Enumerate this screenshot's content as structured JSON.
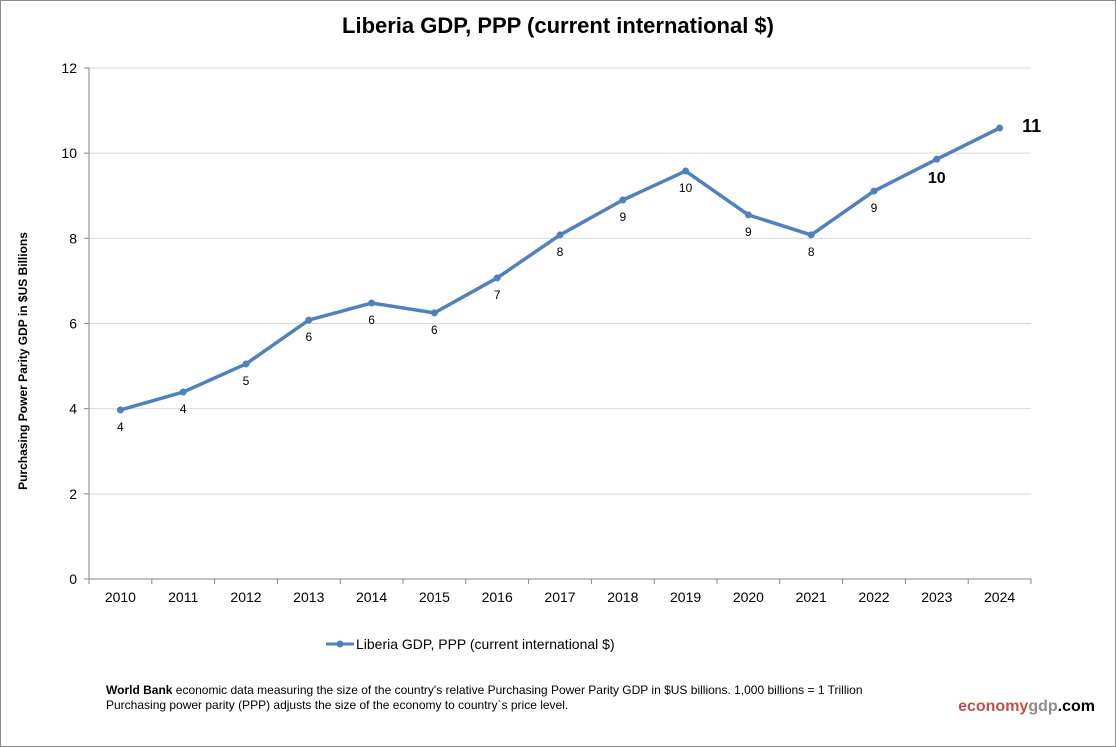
{
  "chart_data": {
    "type": "line",
    "title": "Liberia GDP, PPP (current international $)",
    "ylabel": "Purchasing Power Parity GDP in $US Billions",
    "xlabel": "",
    "ylim": [
      0,
      12
    ],
    "yticks": [
      "0",
      "2",
      "4",
      "6",
      "8",
      "10",
      "12"
    ],
    "grid": true,
    "legend_position": "bottom",
    "categories": [
      "2010",
      "2011",
      "2012",
      "2013",
      "2014",
      "2015",
      "2016",
      "2017",
      "2018",
      "2019",
      "2020",
      "2021",
      "2022",
      "2023",
      "2024"
    ],
    "series": [
      {
        "name": "Liberia GDP, PPP (current international $)",
        "color": "#4f81bd",
        "values": [
          3.97,
          4.39,
          5.05,
          6.08,
          6.48,
          6.25,
          7.07,
          8.08,
          8.9,
          9.58,
          8.55,
          8.08,
          9.11,
          9.86,
          10.59
        ],
        "labels": [
          "4",
          "4",
          "5",
          "6",
          "6",
          "6",
          "7",
          "8",
          "9",
          "10",
          "9",
          "8",
          "9",
          "10",
          "11"
        ]
      }
    ]
  },
  "footer": {
    "source_bold": "World Bank",
    "line1": " economic data  measuring the size of the country's relative  Purchasing Power Parity GDP in $US billions. 1,000 billions = 1 Trillion",
    "line2": "Purchasing power parity (PPP) adjusts the size of the economy to country`s price level."
  },
  "brand": {
    "part1": "economy",
    "part2": "gdp",
    "part3": ".com",
    "color1": "#c0504d",
    "color2": "#8c8c8c"
  }
}
